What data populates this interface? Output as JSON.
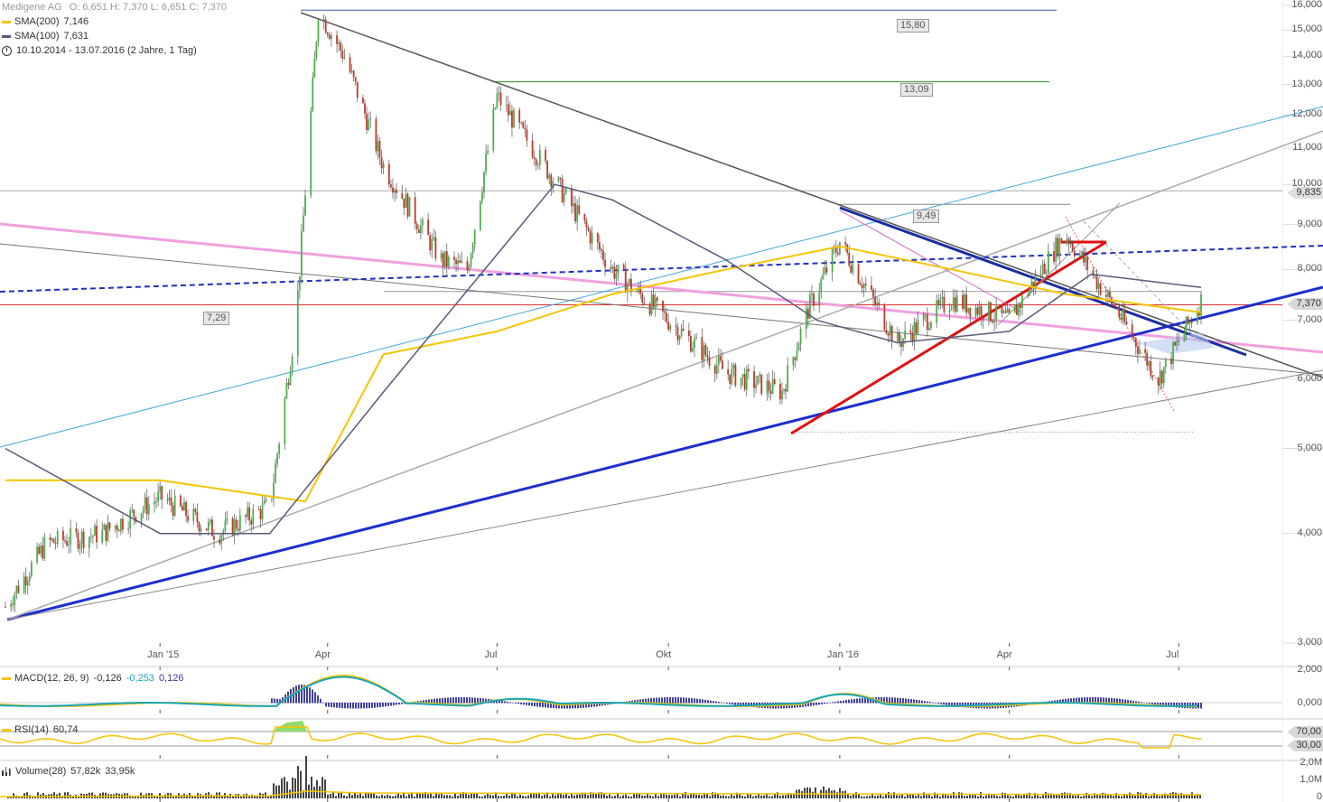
{
  "header": {
    "instrument": "Medigene AG",
    "ohlc": "O: 6,651  H: 7,370  L: 6,651  C: 7,370",
    "sma200_label": "SMA(200)",
    "sma200_value": "7,146",
    "sma100_label": "SMA(100)",
    "sma100_value": "7,631",
    "range": "10.10.2014 - 13.07.2016 (2 Jahre, 1 Tag)"
  },
  "colors": {
    "sma200": "#f5c400",
    "sma100": "#5a5a7a",
    "blue_trend": "#1a2fd0",
    "red_trend": "#e01010",
    "pink_trend": "#f0a0e0",
    "cyan_trend": "#40a8d8",
    "candle_up": "#4caf50",
    "candle_down": "#c0392b",
    "macd_hist": "#4040a0",
    "rsi": "#f5c400",
    "volume": "#444444"
  },
  "levels": {
    "l1580": "15,80",
    "l1309": "13,09",
    "l949": "9,49",
    "l729": "7,29",
    "last": "7,370",
    "mark9835": "9,835"
  },
  "chart_data": {
    "type": "line",
    "title": "Medigene AG",
    "price_axis": {
      "scale": "log",
      "range": [
        3.0,
        16.0
      ],
      "ticks": [
        "16,000",
        "15,000",
        "14,000",
        "13,000",
        "12,000",
        "11,000",
        "10,000",
        "9,000",
        "8,000",
        "7,000",
        "6,000",
        "5,000",
        "4,000",
        "3,000"
      ]
    },
    "x_ticks": [
      "Jan '15",
      "Apr",
      "Jul",
      "Okt",
      "Jan '16",
      "Apr",
      "Jul"
    ],
    "price_series": {
      "name": "Medigene AG",
      "x": [
        "2014-10-10",
        "2014-11-01",
        "2014-12-01",
        "2015-01-01",
        "2015-02-01",
        "2015-03-01",
        "2015-03-15",
        "2015-03-27",
        "2015-04-10",
        "2015-05-01",
        "2015-06-01",
        "2015-06-15",
        "2015-07-01",
        "2015-07-15",
        "2015-08-01",
        "2015-09-01",
        "2015-10-01",
        "2015-11-01",
        "2015-12-01",
        "2015-12-15",
        "2016-01-01",
        "2016-02-01",
        "2016-03-01",
        "2016-04-01",
        "2016-05-01",
        "2016-06-01",
        "2016-06-20",
        "2016-07-13"
      ],
      "y": [
        3.3,
        3.9,
        4.0,
        4.4,
        4.0,
        4.3,
        7.0,
        15.8,
        14.0,
        10.5,
        8.2,
        8.0,
        12.6,
        11.4,
        10.1,
        8.0,
        7.0,
        6.1,
        5.8,
        7.2,
        8.6,
        6.6,
        7.4,
        7.0,
        8.8,
        7.0,
        6.0,
        7.37
      ]
    },
    "sma200": {
      "name": "SMA(200)",
      "x": [
        "2014-10-10",
        "2015-01-01",
        "2015-03-20",
        "2015-05-01",
        "2015-07-01",
        "2015-09-01",
        "2015-11-01",
        "2016-01-01",
        "2016-03-01",
        "2016-05-01",
        "2016-07-13"
      ],
      "y": [
        4.6,
        4.6,
        4.35,
        6.4,
        6.8,
        7.5,
        8.0,
        8.5,
        8.0,
        7.5,
        7.146
      ]
    },
    "sma100": {
      "name": "SMA(100)",
      "x": [
        "2014-10-10",
        "2015-01-01",
        "2015-03-01",
        "2015-05-01",
        "2015-08-01",
        "2015-09-01",
        "2015-11-01",
        "2015-12-20",
        "2016-02-01",
        "2016-04-01",
        "2016-05-15",
        "2016-07-13"
      ],
      "y": [
        5.0,
        4.0,
        4.0,
        5.8,
        10.0,
        9.6,
        8.2,
        7.0,
        6.6,
        6.8,
        7.9,
        7.631
      ]
    },
    "macd": {
      "name": "MACD(12, 26, 9)",
      "values": [
        "-0,126",
        "-0,253",
        "0,126"
      ],
      "ticks": [
        "2,000",
        "0,000"
      ]
    },
    "rsi": {
      "name": "RSI(14)",
      "value": "60,74",
      "levels": [
        "70,00",
        "30,00"
      ]
    },
    "volume": {
      "name": "Volume(28)",
      "values": [
        "57,82k",
        "33,95k"
      ],
      "ticks": [
        "2,0M",
        "1,0M",
        "0"
      ]
    }
  }
}
